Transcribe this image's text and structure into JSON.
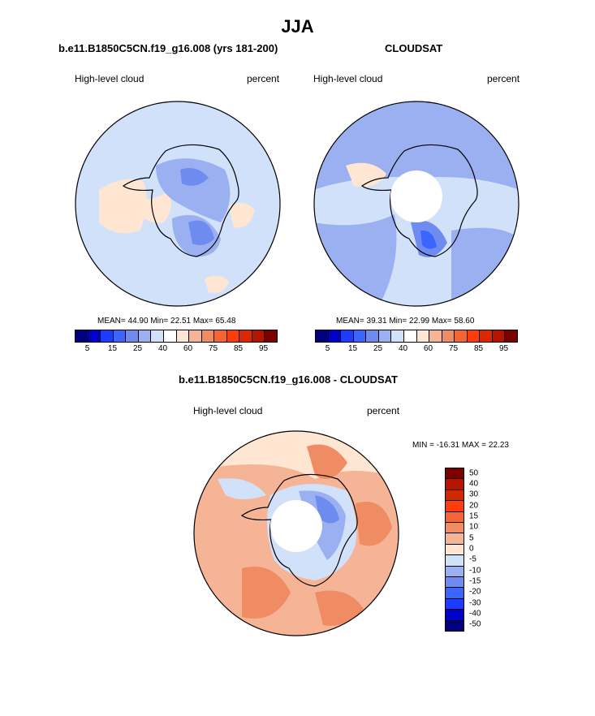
{
  "figure": {
    "title": "JJA",
    "colors": {
      "abs_scale": [
        "#000080",
        "#0000cd",
        "#1e3cff",
        "#3c64ff",
        "#6e8cf0",
        "#9bb0f0",
        "#d2e1fa",
        "#ffffff",
        "#ffe6d2",
        "#f5b496",
        "#f08c64",
        "#f56432",
        "#ff3c0a",
        "#dc2800",
        "#b41400",
        "#7d0000"
      ],
      "diff_scale": [
        "#7d0000",
        "#b41400",
        "#d22800",
        "#ff3c0a",
        "#f56432",
        "#f08c64",
        "#f5b496",
        "#ffe6d2",
        "#d2e1fa",
        "#9bb0f0",
        "#6e8cf0",
        "#3c64ff",
        "#1e3cff",
        "#0000cd",
        "#000080"
      ]
    },
    "panels": [
      {
        "title": "b.e11.B1850C5CN.f19_g16.008 (yrs 181-200)",
        "left_label": "High-level cloud",
        "right_label": "percent",
        "stats": "MEAN=  44.90  Min=  22.51  Max=  65.48",
        "colorbar_labels": [
          "5",
          "15",
          "25",
          "40",
          "60",
          "75",
          "85",
          "95"
        ]
      },
      {
        "title": "CLOUDSAT",
        "left_label": "High-level cloud",
        "right_label": "percent",
        "stats": "MEAN=  39.31  Min=  22.99  Max=  58.60",
        "colorbar_labels": [
          "5",
          "15",
          "25",
          "40",
          "60",
          "75",
          "85",
          "95"
        ]
      }
    ],
    "diff_panel": {
      "title": "b.e11.B1850C5CN.f19_g16.008 - CLOUDSAT",
      "left_label": "High-level cloud",
      "right_label": "percent",
      "minmax": "MIN = -16.31 MAX =  22.23",
      "colorbar_labels": [
        "50",
        "40",
        "30",
        "20",
        "15",
        "10",
        "5",
        "0",
        "-5",
        "-10",
        "-15",
        "-20",
        "-30",
        "-40",
        "-50"
      ]
    }
  }
}
